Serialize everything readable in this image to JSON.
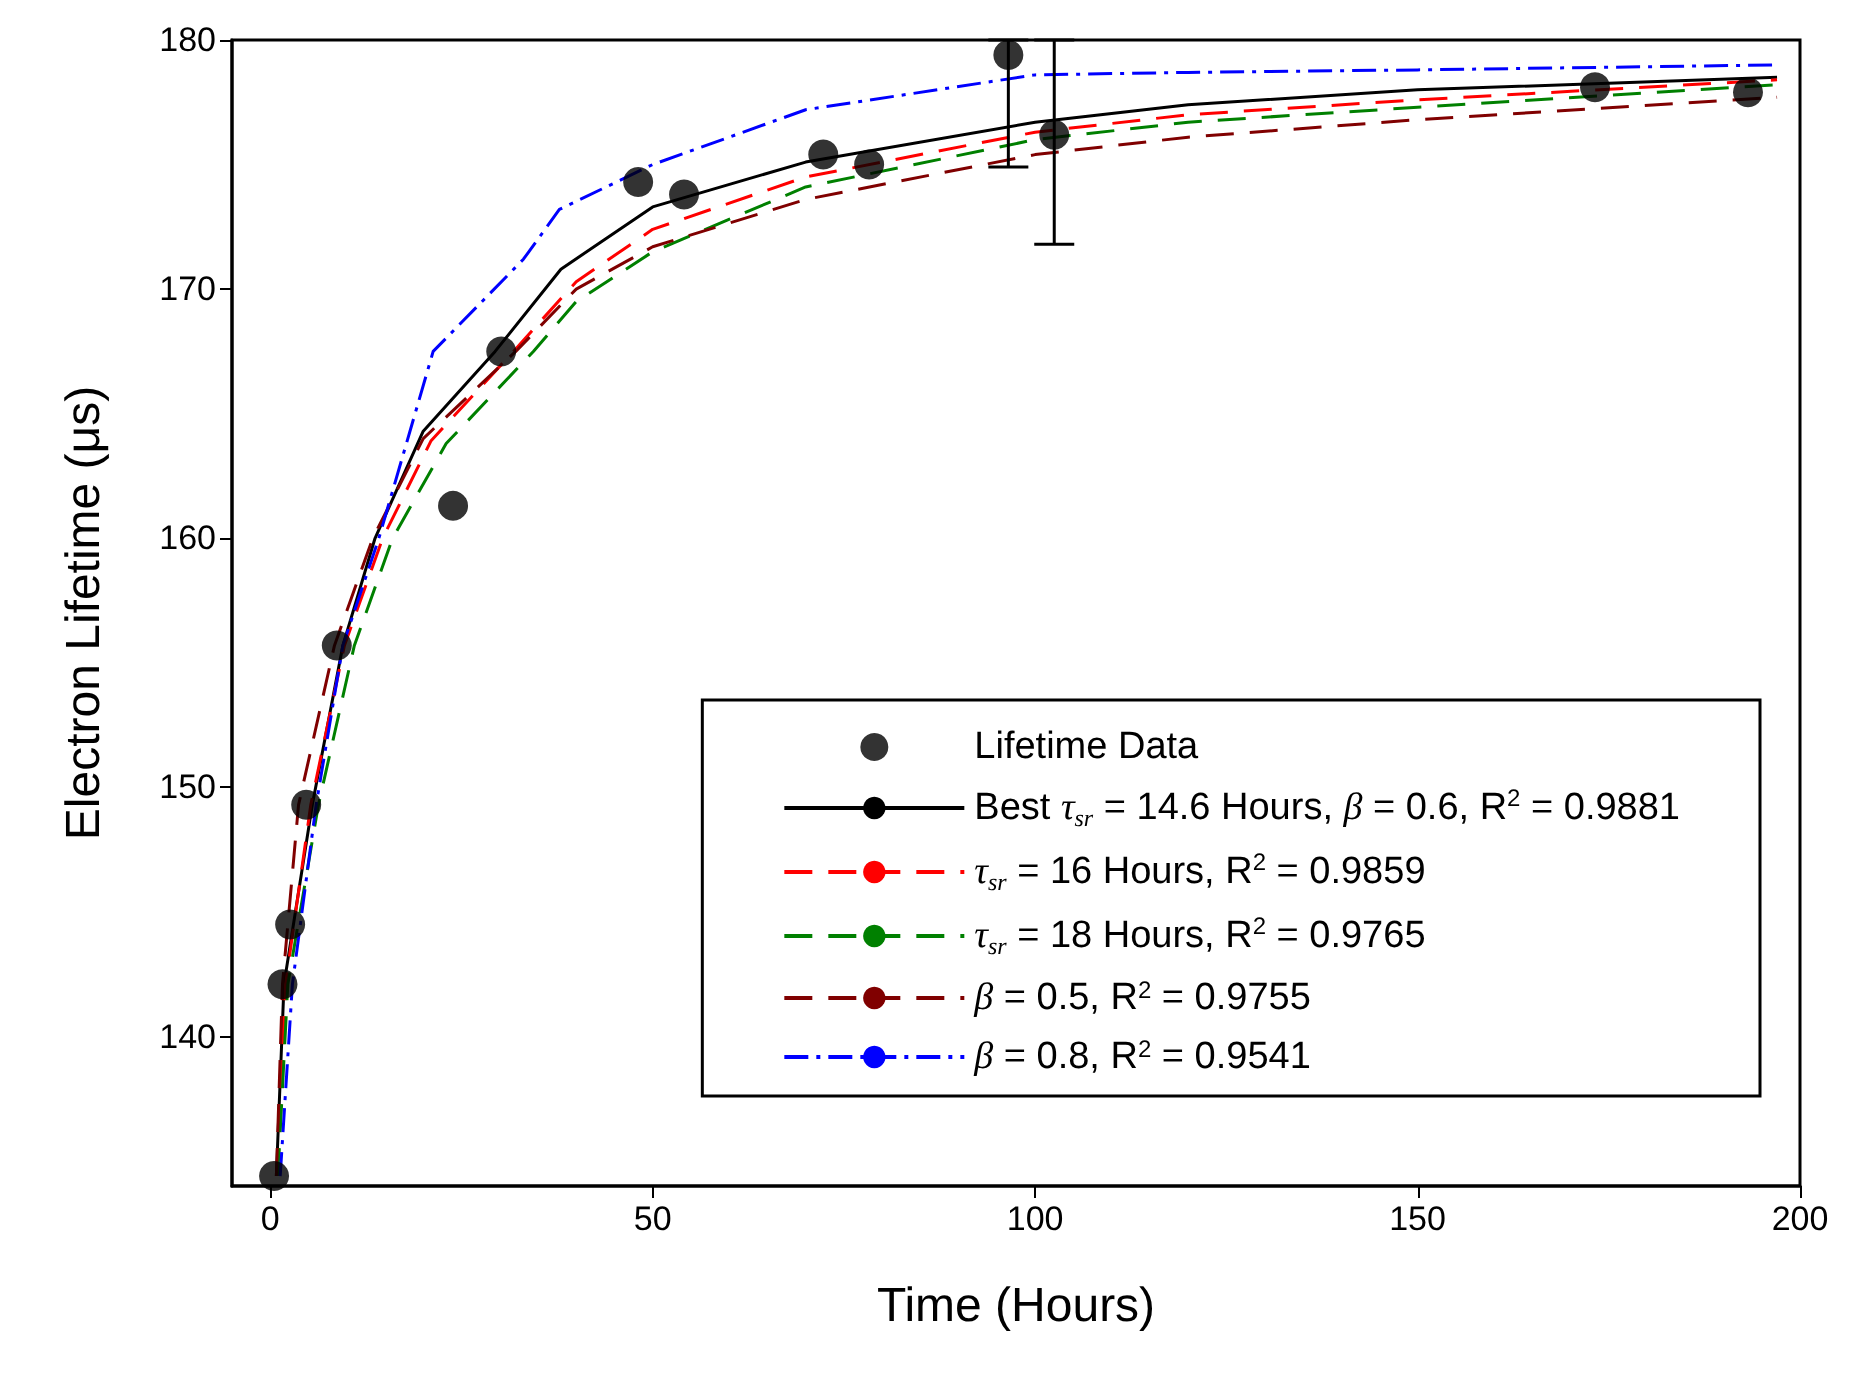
{
  "chart_data": {
    "type": "line",
    "xlabel": "Time (Hours)",
    "ylabel": "Electron Lifetime (μs)",
    "xlim": [
      -5,
      200
    ],
    "xticks": [
      0,
      50,
      100,
      150,
      200
    ],
    "ylim": [
      134,
      180
    ],
    "yticks": [
      140,
      150,
      160,
      170,
      180
    ],
    "grid": false,
    "legend": "bottom right",
    "series": [
      {
        "name": "Lifetime Data",
        "type": "scatter",
        "marker": "circle",
        "color": "#000000",
        "x": [
          0.5,
          1.6,
          2.6,
          4.7,
          8.7,
          23.9,
          30.2,
          48.1,
          54.1,
          72.3,
          78.3,
          96.5,
          102.5,
          173.2,
          193.2
        ],
        "values": [
          134.4,
          142.1,
          144.5,
          149.3,
          155.7,
          161.3,
          167.5,
          174.3,
          173.8,
          175.4,
          175.0,
          179.4,
          176.2,
          178.1,
          177.9
        ],
        "errors": [
          null,
          null,
          null,
          null,
          null,
          null,
          null,
          null,
          null,
          null,
          null,
          [
            174.9,
            180
          ],
          [
            171.8,
            180
          ],
          null,
          null
        ]
      },
      {
        "name": "Best τ$_{sr}$ = 14.6 Hours, β = 0.6, R$^{2}$ = 0.9881",
        "color": "#000000",
        "line_style": "solid",
        "x": [
          0.8,
          1.8,
          5.5,
          9.5,
          13.7,
          20,
          29.4,
          38,
          50,
          70,
          100,
          120,
          150,
          197
        ],
        "values": [
          134.4,
          142.1,
          149.3,
          155.7,
          160,
          164.3,
          167.5,
          170.8,
          173.3,
          175.1,
          176.7,
          177.4,
          178.0,
          178.5
        ]
      },
      {
        "name": "τ$_{sr}$ = 16 Hours, R$^{2}$ = 0.9859",
        "color": "#ff0000",
        "line_style": "dashed",
        "x": [
          0.9,
          2.0,
          5.3,
          9.7,
          14.7,
          21,
          31.8,
          40,
          50,
          70,
          100,
          120,
          150,
          197
        ],
        "values": [
          134.4,
          142.1,
          149.3,
          155.7,
          160,
          163.9,
          167.5,
          170.3,
          172.4,
          174.5,
          176.3,
          177.0,
          177.6,
          178.4
        ]
      },
      {
        "name": "τ$_{sr}$ = 18 Hours, R$^{2}$ = 0.9765",
        "color": "#008000",
        "line_style": "dashed",
        "x": [
          1.0,
          2.3,
          6.3,
          11.0,
          16.0,
          23,
          34.4,
          40,
          50,
          70,
          100,
          120,
          150,
          197
        ],
        "values": [
          134.4,
          142.1,
          149.3,
          155.7,
          160,
          163.8,
          167.5,
          169.5,
          171.5,
          174.1,
          176.0,
          176.7,
          177.3,
          178.2
        ]
      },
      {
        "name": "β = 0.5, R$^{2}$ = 0.9755",
        "color": "#800000",
        "line_style": "dashed",
        "x": [
          0.8,
          1.6,
          3.7,
          8.4,
          13.4,
          20,
          32.1,
          40,
          50,
          70,
          100,
          120,
          150,
          197
        ],
        "values": [
          134.4,
          142.1,
          149.3,
          155.7,
          160,
          164.0,
          167.5,
          170.0,
          171.7,
          173.6,
          175.4,
          176.1,
          176.8,
          177.7
        ]
      },
      {
        "name": "β = 0.8, R$^{2}$ = 0.9541",
        "color": "#0000ff",
        "line_style": "dashdot",
        "x": [
          1.3,
          2.9,
          6.0,
          9.5,
          14.2,
          21.3,
          33.1,
          37.8,
          50,
          70,
          100,
          120,
          150,
          197
        ],
        "values": [
          134.4,
          142.1,
          149.3,
          155.7,
          160,
          167.5,
          171.2,
          173.2,
          175.0,
          177.2,
          178.6,
          178.7,
          178.8,
          179.0
        ]
      }
    ]
  }
}
